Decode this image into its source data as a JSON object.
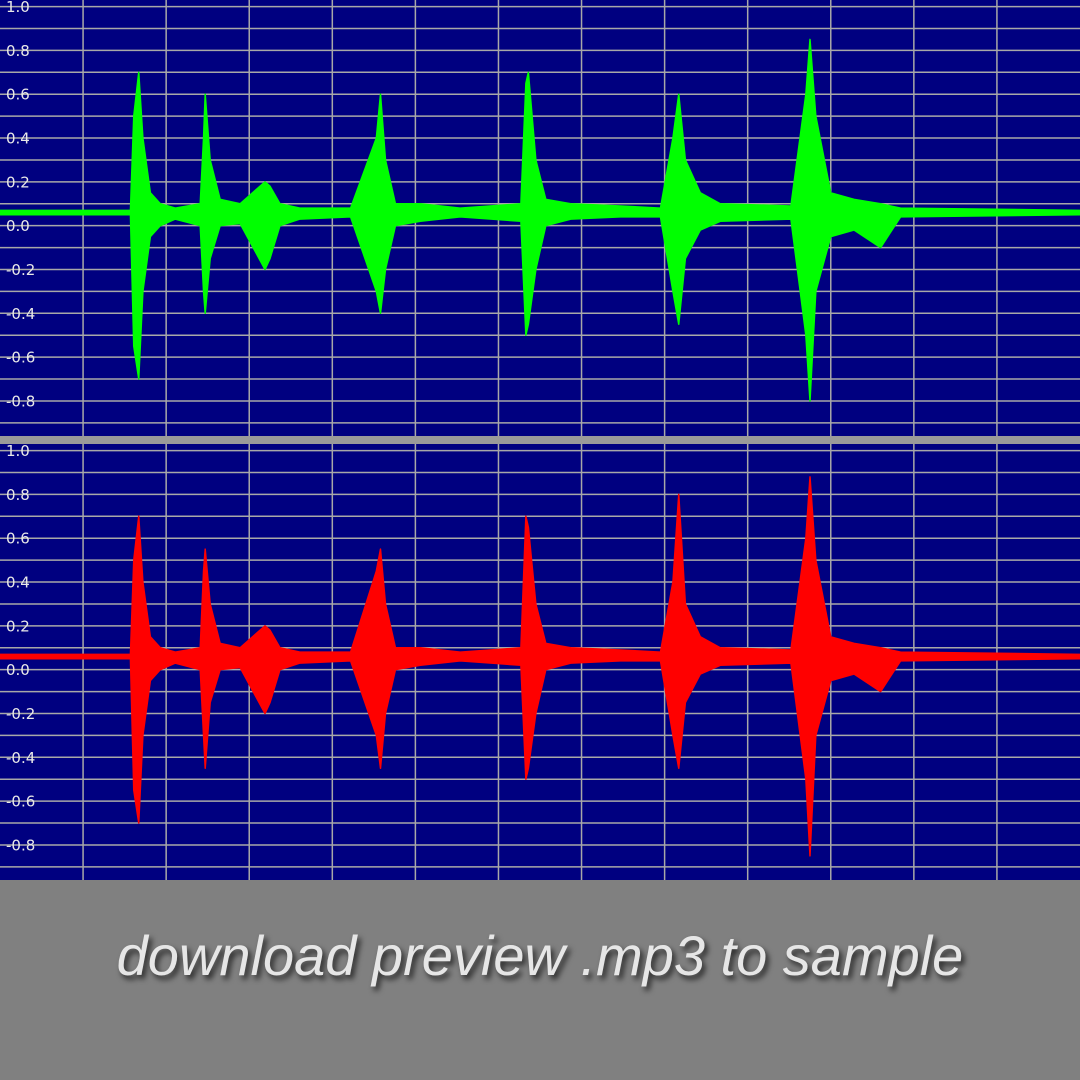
{
  "chart_data": [
    {
      "type": "range-area",
      "color": "#00ff00",
      "x": [
        0,
        1.57,
        1.61,
        1.67,
        1.72,
        1.81,
        1.93,
        2.11,
        2.41,
        2.45,
        2.47,
        2.53,
        2.65,
        2.89,
        3.19,
        3.25,
        3.37,
        3.61,
        4.22,
        4.53,
        4.58,
        4.64,
        4.76,
        5.06,
        5.54,
        6.27,
        6.33,
        6.36,
        6.45,
        6.57,
        6.87,
        7.47,
        7.95,
        8.1,
        8.17,
        8.25,
        8.43,
        8.67,
        9.52,
        9.7,
        9.75,
        9.82,
        10,
        10.28,
        10.6,
        10.84,
        13
      ],
      "upper": [
        0.07,
        0.07,
        0.5,
        0.7,
        0.4,
        0.15,
        0.1,
        0.08,
        0.1,
        0.4,
        0.6,
        0.3,
        0.12,
        0.1,
        0.2,
        0.18,
        0.1,
        0.08,
        0.08,
        0.4,
        0.6,
        0.3,
        0.1,
        0.1,
        0.08,
        0.1,
        0.65,
        0.7,
        0.3,
        0.12,
        0.1,
        0.09,
        0.08,
        0.4,
        0.6,
        0.3,
        0.15,
        0.1,
        0.09,
        0.6,
        0.85,
        0.5,
        0.15,
        0.12,
        0.1,
        0.08,
        0.07
      ],
      "lower": [
        0.05,
        0.05,
        -0.55,
        -0.7,
        -0.3,
        -0.05,
        0,
        0.03,
        0,
        -0.3,
        -0.4,
        -0.15,
        0,
        0.01,
        -0.2,
        -0.15,
        0,
        0.03,
        0.04,
        -0.3,
        -0.4,
        -0.2,
        0,
        0.02,
        0.04,
        0.02,
        -0.5,
        -0.45,
        -0.2,
        0,
        0.03,
        0.04,
        0.04,
        -0.3,
        -0.45,
        -0.15,
        -0.02,
        0.02,
        0.03,
        -0.5,
        -0.8,
        -0.3,
        -0.05,
        -0.02,
        -0.1,
        0.04,
        0.05
      ],
      "xlim": [
        0,
        13
      ],
      "ylim": [
        -0.96,
        1.03
      ],
      "yticks": [
        {
          "value": 1,
          "label": "1.0"
        },
        0.8,
        0.6,
        0.4,
        0.2,
        {
          "value": 0,
          "label": "0.0"
        },
        -0.2,
        -0.4,
        -0.6,
        -0.8
      ],
      "ygrid": [
        0.9,
        0.7,
        0.5,
        0.3,
        0.1,
        -0.1,
        -0.3,
        -0.5,
        -0.7,
        -0.9
      ]
    },
    {
      "type": "range-area",
      "color": "#ff0000",
      "x": [
        0,
        1.57,
        1.61,
        1.67,
        1.72,
        1.81,
        1.93,
        2.11,
        2.41,
        2.45,
        2.47,
        2.53,
        2.65,
        2.89,
        3.19,
        3.25,
        3.37,
        3.61,
        4.22,
        4.53,
        4.58,
        4.64,
        4.76,
        5.06,
        5.54,
        6.27,
        6.33,
        6.36,
        6.45,
        6.57,
        6.87,
        7.47,
        7.95,
        8.1,
        8.17,
        8.25,
        8.43,
        8.67,
        9.52,
        9.7,
        9.75,
        9.82,
        10,
        10.28,
        10.6,
        10.84,
        13
      ],
      "upper": [
        0.07,
        0.07,
        0.5,
        0.7,
        0.4,
        0.15,
        0.1,
        0.08,
        0.1,
        0.45,
        0.55,
        0.3,
        0.12,
        0.1,
        0.2,
        0.18,
        0.1,
        0.08,
        0.08,
        0.45,
        0.55,
        0.3,
        0.1,
        0.1,
        0.08,
        0.1,
        0.7,
        0.65,
        0.3,
        0.12,
        0.1,
        0.09,
        0.08,
        0.4,
        0.8,
        0.3,
        0.15,
        0.1,
        0.09,
        0.6,
        0.88,
        0.5,
        0.15,
        0.12,
        0.1,
        0.08,
        0.07
      ],
      "lower": [
        0.05,
        0.05,
        -0.55,
        -0.7,
        -0.3,
        -0.05,
        0,
        0.03,
        0,
        -0.3,
        -0.45,
        -0.15,
        0,
        0.01,
        -0.2,
        -0.15,
        0,
        0.03,
        0.04,
        -0.3,
        -0.45,
        -0.2,
        0,
        0.02,
        0.04,
        0.02,
        -0.5,
        -0.45,
        -0.2,
        0,
        0.03,
        0.04,
        0.04,
        -0.3,
        -0.45,
        -0.15,
        -0.02,
        0.02,
        0.03,
        -0.5,
        -0.85,
        -0.3,
        -0.05,
        -0.02,
        -0.1,
        0.04,
        0.05
      ],
      "xlim": [
        0,
        13
      ],
      "ylim": [
        -0.96,
        1.03
      ],
      "yticks": [
        {
          "value": 1,
          "label": "1.0"
        },
        0.8,
        0.6,
        0.4,
        0.2,
        {
          "value": 0,
          "label": "0.0"
        },
        -0.2,
        -0.4,
        -0.6,
        -0.8
      ],
      "ygrid": [
        0.9,
        0.7,
        0.5,
        0.3,
        0.1,
        -0.1,
        -0.3,
        -0.5,
        -0.7,
        -0.9
      ]
    }
  ],
  "caption": "download preview .mp3 to sample"
}
